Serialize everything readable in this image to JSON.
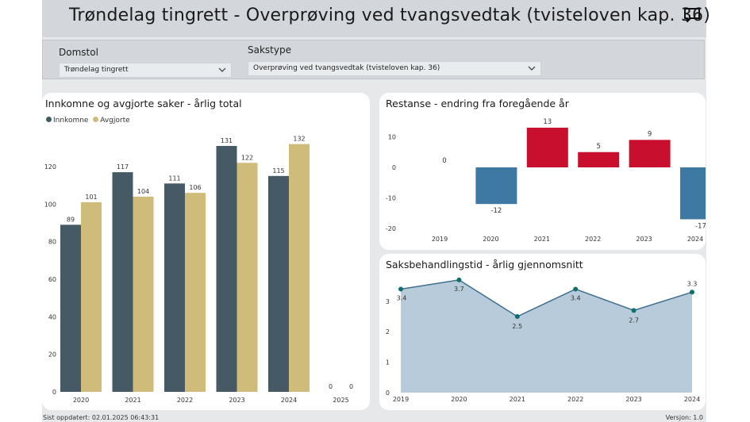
{
  "header": {
    "title": "Trøndelag tingrett - Overprøving ved tvangsvedtak (tvisteloven kap. 36)"
  },
  "filters": {
    "domstol": {
      "label": "Domstol",
      "value": "Trøndelag tingrett"
    },
    "sakstype": {
      "label": "Sakstype",
      "value": "Overprøving ved tvangsvedtak (tvisteloven kap. 36)"
    }
  },
  "colors": {
    "innkomne": "#455a64",
    "avgjorte": "#cfbc7a",
    "positive": "#c8102e",
    "negative": "#3e79a4",
    "area_fill": "#b7cbda",
    "area_line": "#3e6f8f",
    "marker": "#0f6e6e"
  },
  "chart_data": [
    {
      "id": "left",
      "type": "bar",
      "title": "Innkomne og avgjorte saker - årlig total",
      "categories": [
        "2020",
        "2021",
        "2022",
        "2023",
        "2024",
        "2025"
      ],
      "series": [
        {
          "name": "Innkomne",
          "values": [
            89,
            117,
            111,
            131,
            115,
            0
          ]
        },
        {
          "name": "Avgjorte",
          "values": [
            101,
            104,
            106,
            122,
            132,
            0
          ]
        }
      ],
      "yticks": [
        "0",
        "20",
        "40",
        "60",
        "80",
        "100",
        "120"
      ],
      "ylim": [
        0,
        135
      ],
      "legend": "top-left",
      "grid": false
    },
    {
      "id": "restanse",
      "type": "bar",
      "title": "Restanse - endring fra foregående år",
      "categories": [
        "2019",
        "2020",
        "2021",
        "2022",
        "2023",
        "2024"
      ],
      "values": [
        0,
        -12,
        13,
        5,
        9,
        -17
      ],
      "yticks": [
        "-20",
        "-10",
        "0",
        "10"
      ],
      "ylim": [
        -20,
        14
      ],
      "grid": false
    },
    {
      "id": "tid",
      "type": "area",
      "title": "Saksbehandlingstid - årlig gjennomsnitt",
      "x": [
        "2019",
        "2020",
        "2021",
        "2022",
        "2023",
        "2024"
      ],
      "values": [
        3.4,
        3.7,
        2.5,
        3.4,
        2.7,
        3.3
      ],
      "yticks": [
        "0",
        "1",
        "2",
        "3"
      ],
      "ylim": [
        0,
        3.8
      ],
      "grid": false
    }
  ],
  "footer": {
    "updated": "Sist oppdatert: 02.01.2025 06:43:31",
    "version": "Versjon: 1.0"
  }
}
